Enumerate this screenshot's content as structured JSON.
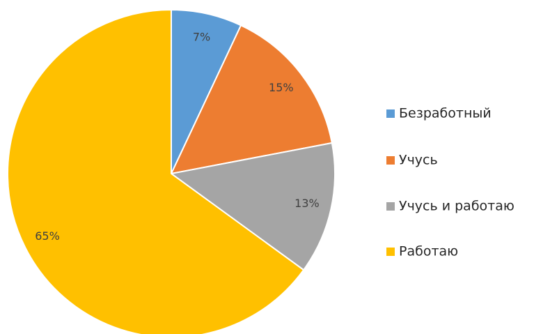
{
  "chart_data": {
    "type": "pie",
    "categories": [
      "Безработный",
      "Учусь",
      "Учусь и работаю",
      "Работаю"
    ],
    "values": [
      7,
      15,
      13,
      65
    ],
    "value_labels": [
      "7%",
      "15%",
      "13%",
      "65%"
    ],
    "colors": [
      "#5b9bd5",
      "#ed7d31",
      "#a5a5a5",
      "#ffc000"
    ],
    "legend": "right"
  }
}
